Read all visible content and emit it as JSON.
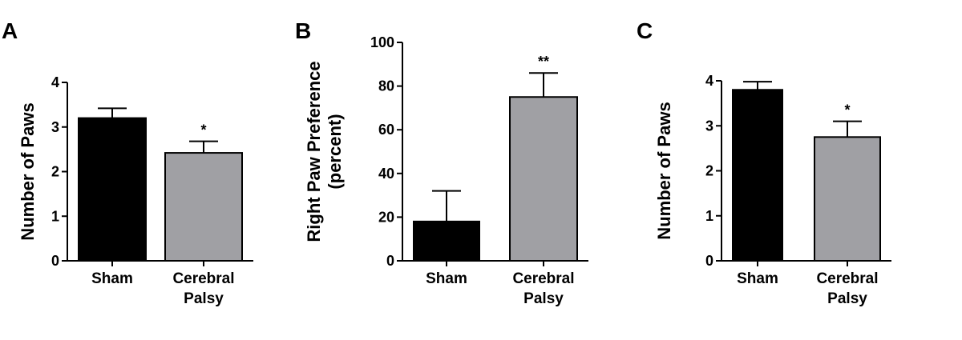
{
  "chart_data": [
    {
      "type": "bar",
      "panel": "A",
      "ylabel": "Number of Paws",
      "categories": [
        "Sham",
        "Cerebral\nPalsy"
      ],
      "values": [
        3.2,
        2.42
      ],
      "errors": [
        0.22,
        0.26
      ],
      "significance": [
        "",
        "*"
      ],
      "colors": [
        "#000000",
        "#a0a0a4"
      ],
      "ylim": [
        0,
        4
      ],
      "yticks": [
        0,
        1,
        2,
        3,
        4
      ]
    },
    {
      "type": "bar",
      "panel": "B",
      "ylabel": "Right Paw Preference\n(percent)",
      "categories": [
        "Sham",
        "Cerebral\nPalsy"
      ],
      "values": [
        18,
        75
      ],
      "errors": [
        14,
        11
      ],
      "significance": [
        "",
        "**"
      ],
      "colors": [
        "#000000",
        "#a0a0a4"
      ],
      "ylim": [
        0,
        100
      ],
      "yticks": [
        0,
        20,
        40,
        60,
        80,
        100
      ]
    },
    {
      "type": "bar",
      "panel": "C",
      "ylabel": "Number of Paws",
      "categories": [
        "Sham",
        "Cerebral\nPalsy"
      ],
      "values": [
        3.8,
        2.75
      ],
      "errors": [
        0.18,
        0.35
      ],
      "significance": [
        "",
        "*"
      ],
      "colors": [
        "#000000",
        "#a0a0a4"
      ],
      "ylim": [
        0,
        4
      ],
      "yticks": [
        0,
        1,
        2,
        3,
        4
      ]
    }
  ]
}
